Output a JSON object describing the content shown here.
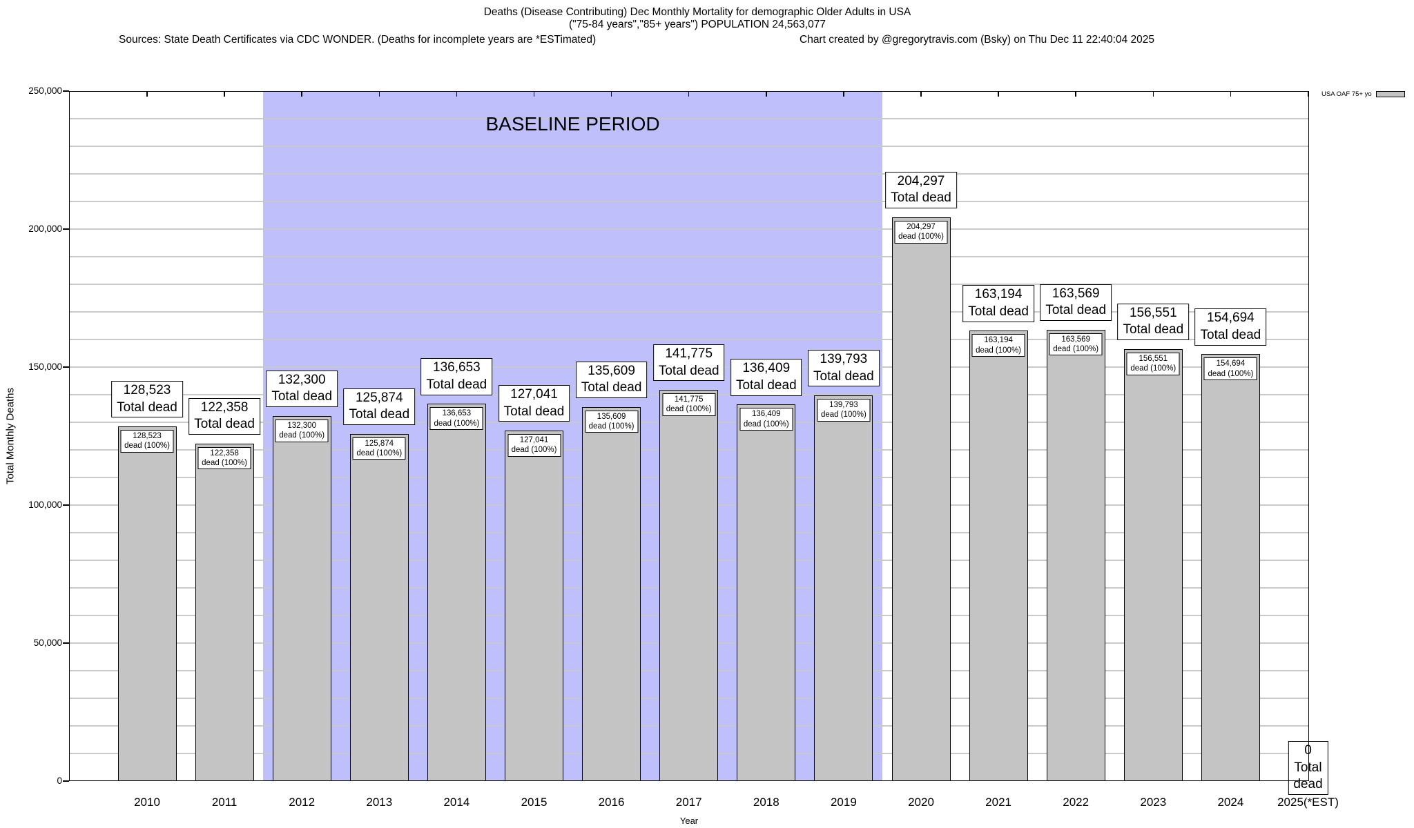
{
  "header": {
    "title_line1": "Deaths (Disease Contributing) Dec Monthly Mortality for demographic Older Adults in USA",
    "title_line2": "(\"75-84 years\",\"85+ years\") POPULATION 24,563,077",
    "sources_line": "Sources: State Death Certificates via CDC WONDER. (Deaths for incomplete years are *ESTimated)",
    "credit_line": "Chart created by @gregorytravis.com (Bsky) on Thu Dec 11 22:40:04 2025"
  },
  "chart_data": {
    "type": "bar",
    "title": "Deaths (Disease Contributing) Dec Monthly Mortality for demographic Older Adults in USA",
    "xlabel": "Year",
    "ylabel": "Total Monthly Deaths",
    "ylim": [
      0,
      250000
    ],
    "ytick_values": [
      0,
      50000,
      100000,
      150000,
      200000,
      250000
    ],
    "ytick_labels": [
      "0",
      "50,000",
      "100,000",
      "150,000",
      "200,000",
      "250,000"
    ],
    "minor_grid_interval": 10000,
    "grid": true,
    "categories": [
      "2010",
      "2011",
      "2012",
      "2013",
      "2014",
      "2015",
      "2016",
      "2017",
      "2018",
      "2019",
      "2020",
      "2021",
      "2022",
      "2023",
      "2024",
      "2025(*EST)"
    ],
    "values": [
      128523,
      122358,
      132300,
      125874,
      136653,
      127041,
      135609,
      141775,
      136409,
      139793,
      204297,
      163194,
      163569,
      156551,
      154694,
      0
    ],
    "values_formatted": [
      "128,523",
      "122,358",
      "132,300",
      "125,874",
      "136,653",
      "127,041",
      "135,609",
      "141,775",
      "136,409",
      "139,793",
      "204,297",
      "163,194",
      "163,569",
      "156,551",
      "154,694",
      "0"
    ],
    "outer_label_suffix": "Total dead",
    "inner_label_suffix": "dead (100%)",
    "baseline_band": {
      "label": "BASELINE PERIOD",
      "from_index": 1.5,
      "to_index": 9.5
    },
    "legend": {
      "label": "USA OAF 75+ yo",
      "position": "top-right-outside"
    },
    "colors": {
      "bar_fill": "#c4c4c4",
      "bar_border": "#000000",
      "baseline_band": "#bfbffc",
      "gridline": "#c9c9c9",
      "axis": "#000000"
    }
  }
}
